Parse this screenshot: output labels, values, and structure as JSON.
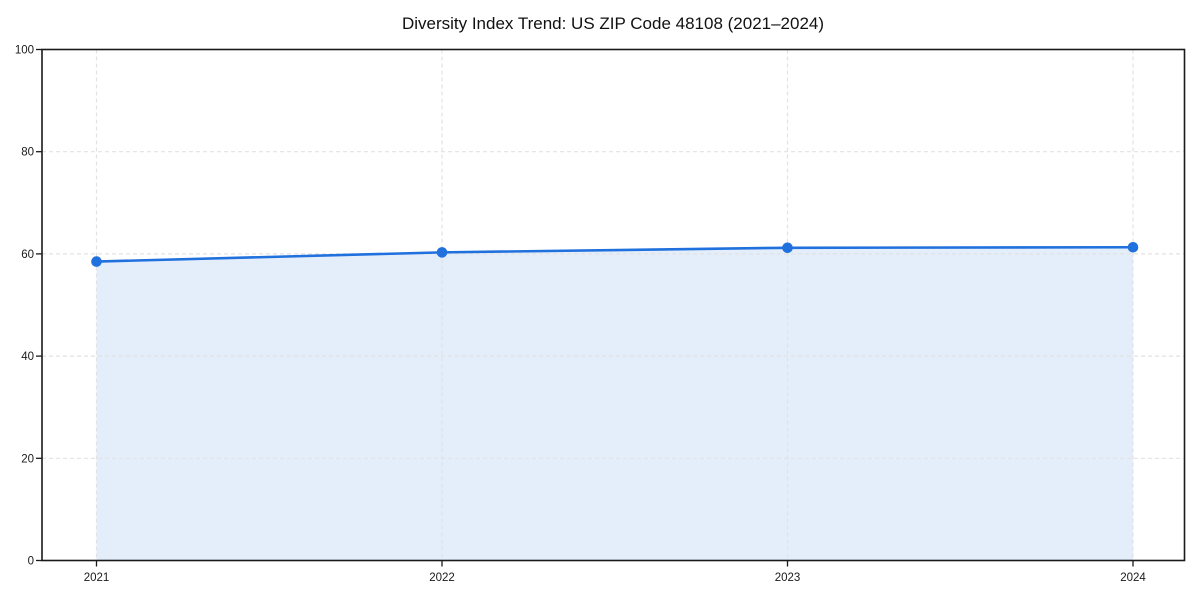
{
  "chart_data": {
    "type": "line",
    "title": "Diversity Index Trend: US ZIP Code 48108 (2021–2024)",
    "x": [
      "2021",
      "2022",
      "2023",
      "2024"
    ],
    "series": [
      {
        "name": "Diversity Index",
        "values": [
          58.5,
          60.3,
          61.2,
          61.3
        ]
      }
    ],
    "xlabel": "",
    "ylabel": "",
    "ylim": [
      0,
      100
    ],
    "yticks": [
      0,
      20,
      40,
      60,
      80,
      100
    ],
    "grid": "dashed",
    "legend": "none",
    "area_fill": true,
    "marker": "circle",
    "colors": {
      "line": "#2070dd",
      "marker": "#2070dd",
      "area_fill": "#2070dd",
      "area_fill_opacity": 0.12,
      "grid": "#e2e2e2",
      "axis": "#1a1a1a",
      "tick_text": "#1a1a1a",
      "title_text": "#111111",
      "background": "#ffffff"
    }
  }
}
